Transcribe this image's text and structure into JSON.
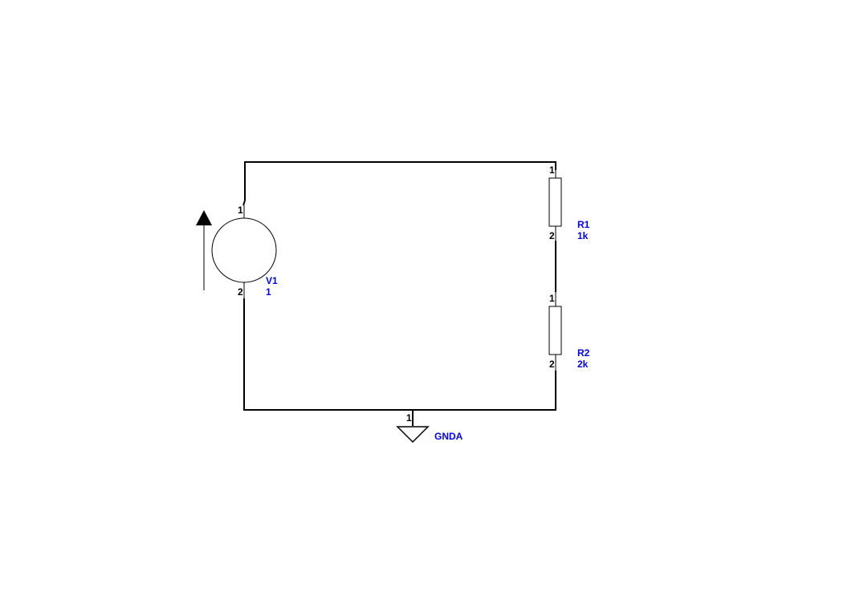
{
  "colors": {
    "wire": "#000000",
    "label": "#0000ff",
    "background": "#ffffff"
  },
  "components": {
    "v1": {
      "ref": "V1",
      "value": "1",
      "pin_top": "1",
      "pin_bottom": "2",
      "symbol": "voltage-source-circle",
      "indicator": "arrow-up-icon"
    },
    "r1": {
      "ref": "R1",
      "value": "1k",
      "pin_top": "1",
      "pin_bottom": "2",
      "symbol": "resistor-rectangle"
    },
    "r2": {
      "ref": "R2",
      "value": "2k",
      "pin_top": "1",
      "pin_bottom": "2",
      "symbol": "resistor-rectangle"
    },
    "gnd": {
      "ref": "GNDA",
      "pin": "1",
      "symbol": "ground-triangle-icon"
    }
  }
}
